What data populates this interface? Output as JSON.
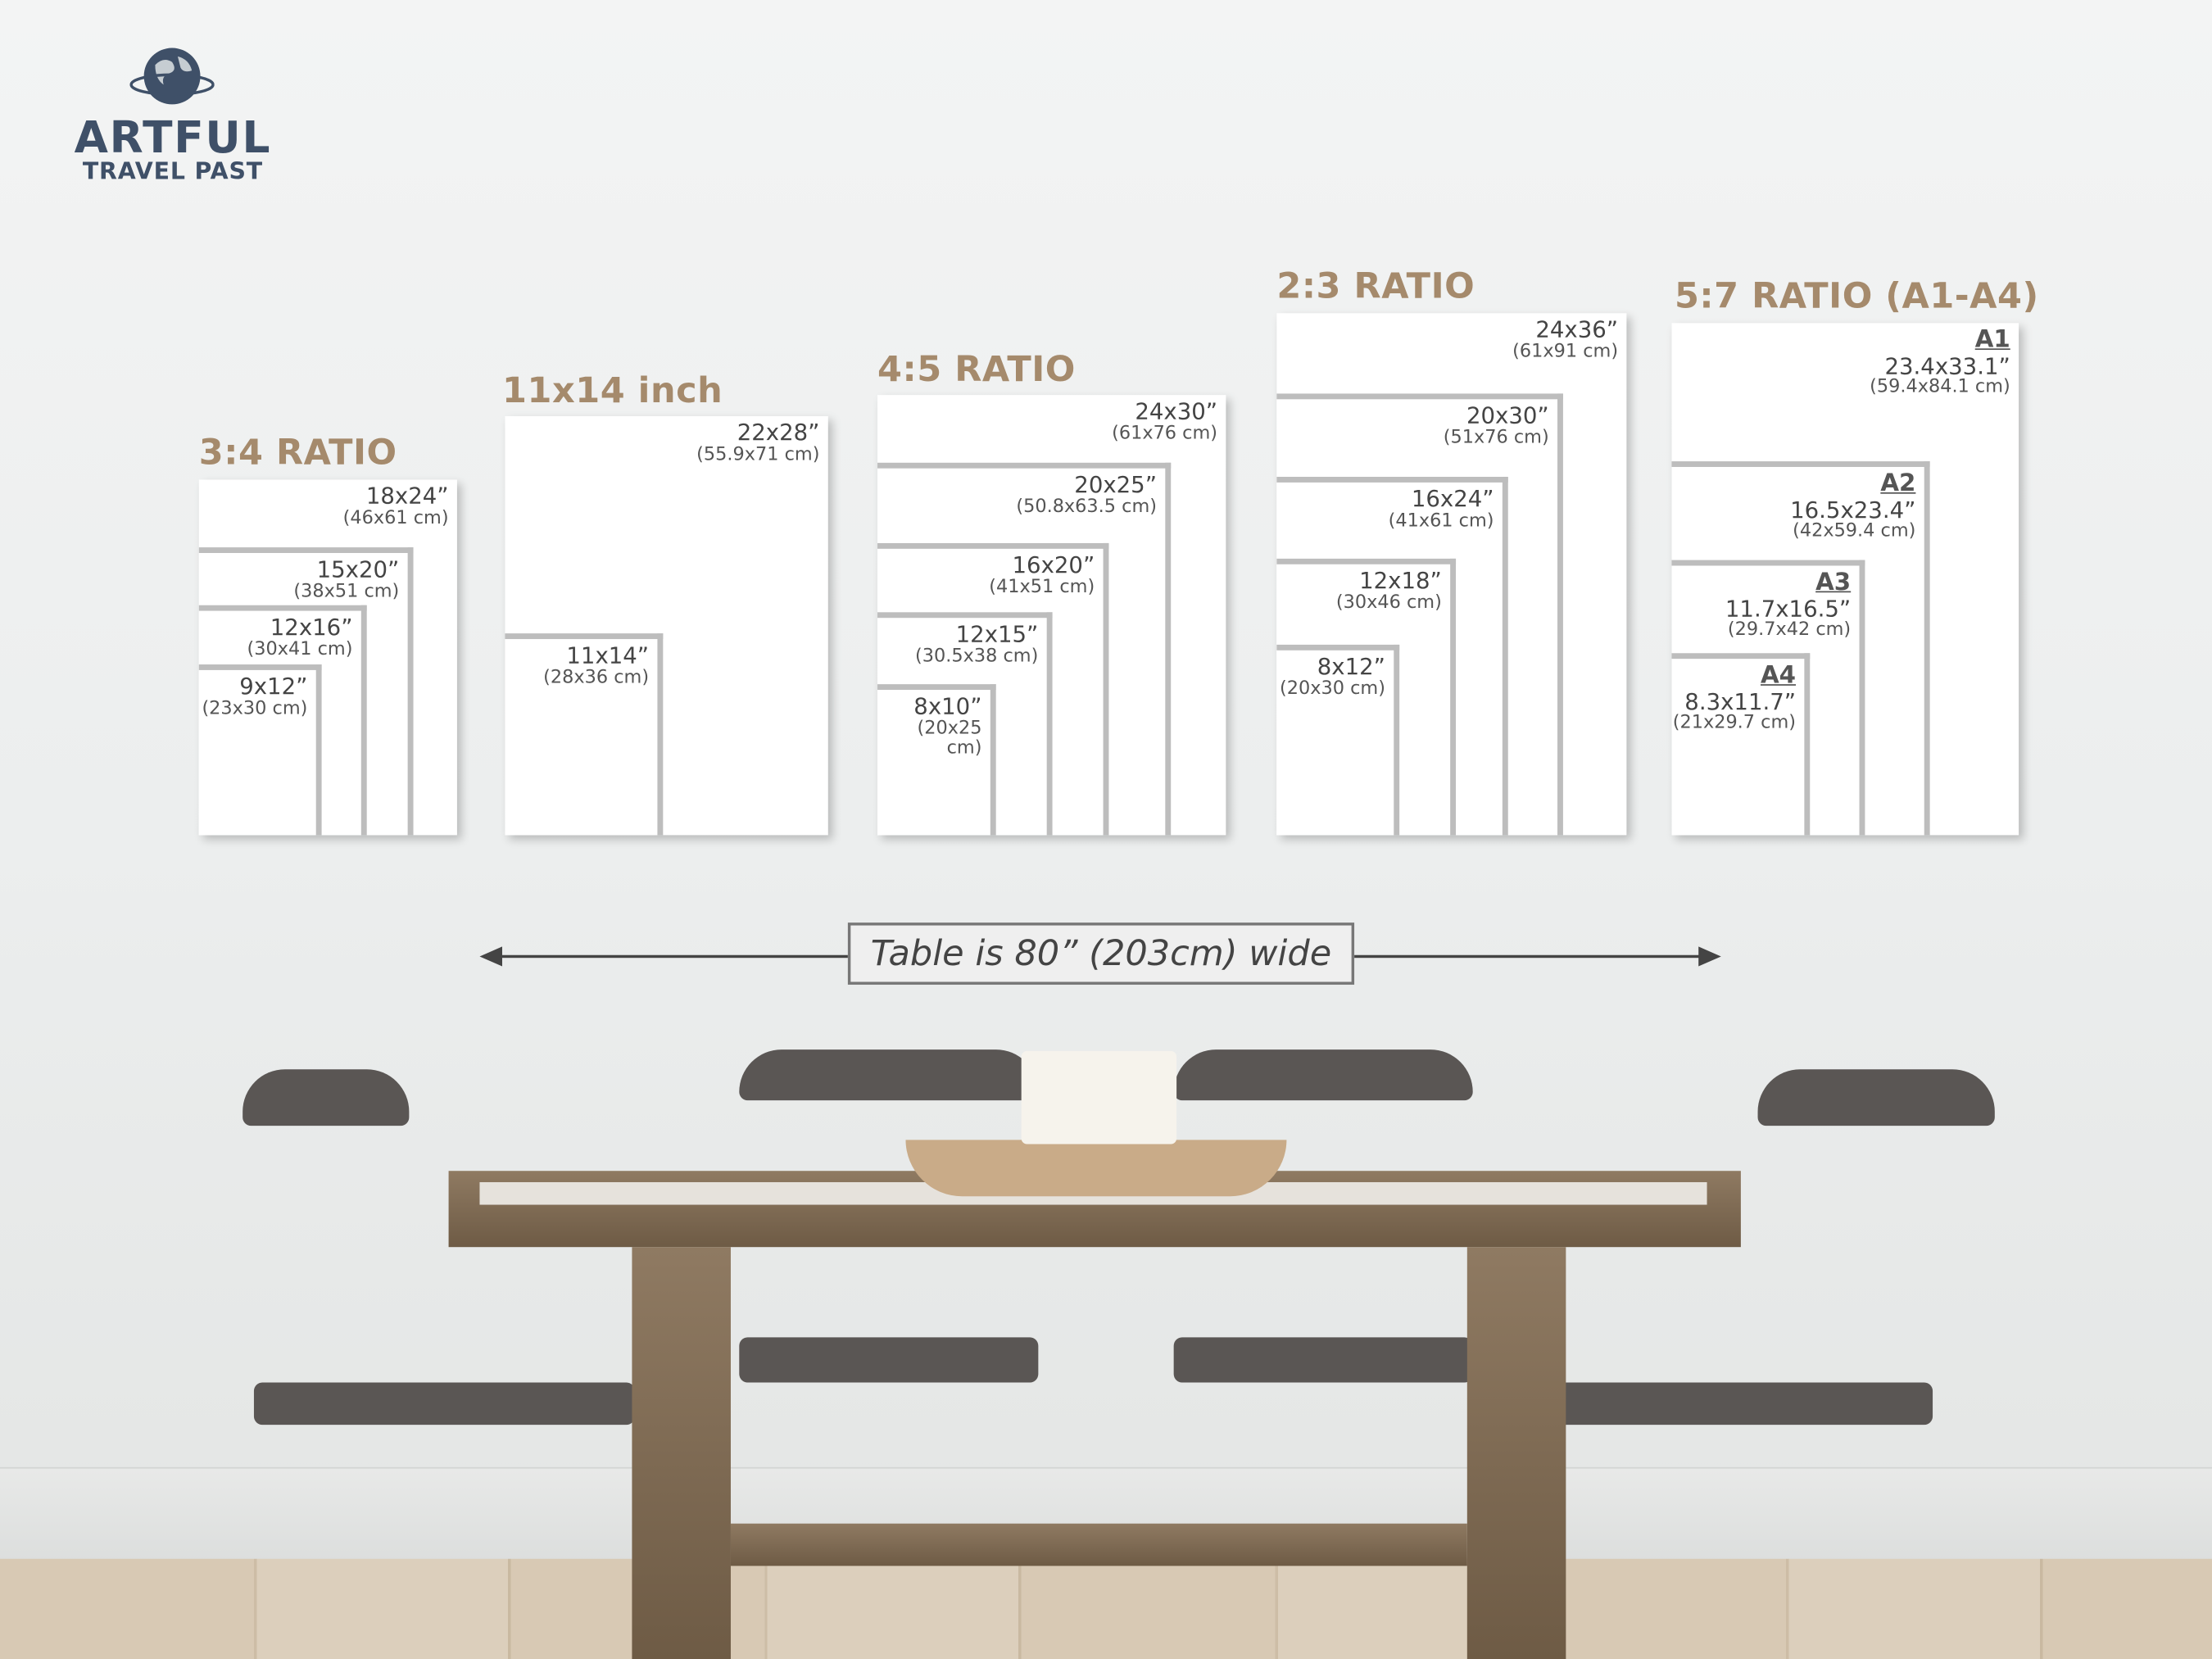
{
  "logo": {
    "name": "ARTFUL",
    "subtitle": "TRAVEL PAST",
    "icon": "globe-with-orbit-icon"
  },
  "colors": {
    "title": "#a58a6c",
    "text": "#444444",
    "border": "#bdbdbd",
    "logo": "#3f5068"
  },
  "groups": [
    {
      "title": "3:4 RATIO",
      "sizes": [
        {
          "inches": "18x24”",
          "cm": "(46x61 cm)"
        },
        {
          "inches": "15x20”",
          "cm": "(38x51 cm)"
        },
        {
          "inches": "12x16”",
          "cm": "(30x41 cm)"
        },
        {
          "inches": "9x12”",
          "cm": "(23x30 cm)"
        }
      ]
    },
    {
      "title": "11x14 inch",
      "sizes": [
        {
          "inches": "22x28”",
          "cm": "(55.9x71 cm)"
        },
        {
          "inches": "11x14”",
          "cm": "(28x36 cm)"
        }
      ]
    },
    {
      "title": "4:5 RATIO",
      "sizes": [
        {
          "inches": "24x30”",
          "cm": "(61x76 cm)"
        },
        {
          "inches": "20x25”",
          "cm": "(50.8x63.5 cm)"
        },
        {
          "inches": "16x20”",
          "cm": "(41x51 cm)"
        },
        {
          "inches": "12x15”",
          "cm": "(30.5x38 cm)"
        },
        {
          "inches": "8x10”",
          "cm": "(20x25 cm)"
        }
      ]
    },
    {
      "title": "2:3 RATIO",
      "sizes": [
        {
          "inches": "24x36”",
          "cm": "(61x91 cm)"
        },
        {
          "inches": "20x30”",
          "cm": "(51x76 cm)"
        },
        {
          "inches": "16x24”",
          "cm": "(41x61 cm)"
        },
        {
          "inches": "12x18”",
          "cm": "(30x46 cm)"
        },
        {
          "inches": "8x12”",
          "cm": "(20x30 cm)"
        }
      ]
    },
    {
      "title": "5:7 RATIO (A1-A4)",
      "sizes": [
        {
          "paper": "A1",
          "inches": "23.4x33.1”",
          "cm": "(59.4x84.1 cm)"
        },
        {
          "paper": "A2",
          "inches": "16.5x23.4”",
          "cm": "(42x59.4 cm)"
        },
        {
          "paper": "A3",
          "inches": "11.7x16.5”",
          "cm": "(29.7x42 cm)"
        },
        {
          "paper": "A4",
          "inches": "8.3x11.7”",
          "cm": "(21x29.7 cm)"
        }
      ]
    }
  ],
  "measurement": {
    "label": "Table is 80” (203cm) wide",
    "icon": "double-arrow-icon"
  }
}
